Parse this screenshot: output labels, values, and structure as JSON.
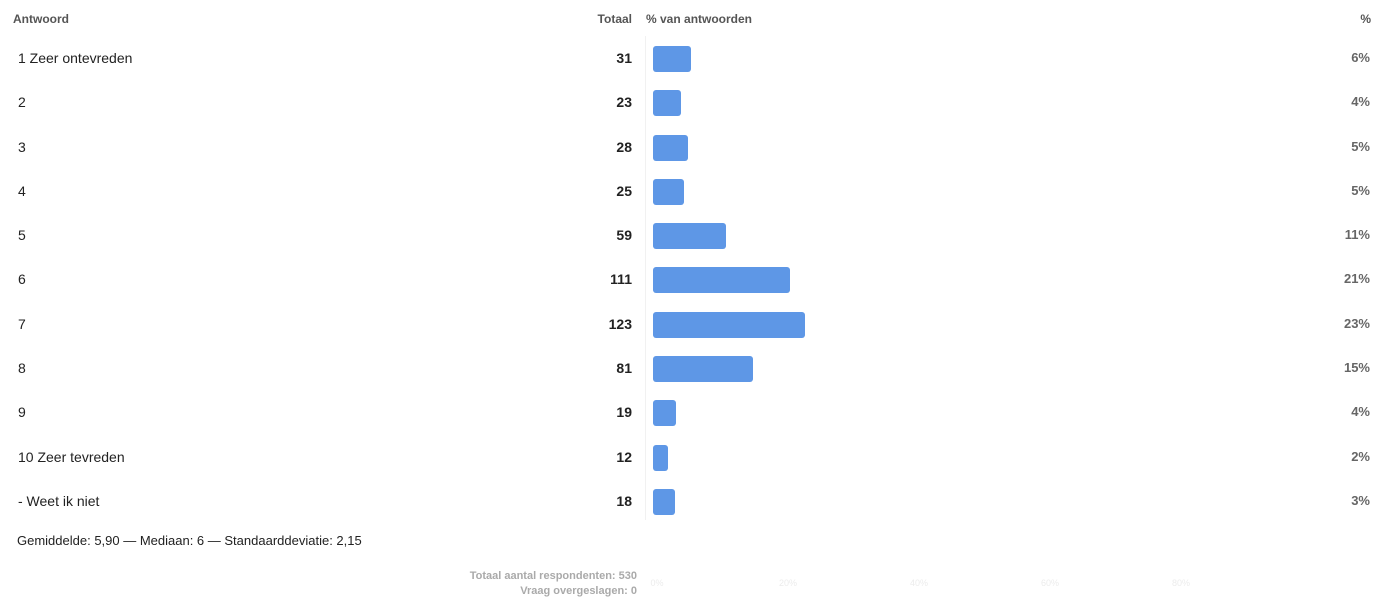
{
  "headers": {
    "answer": "Antwoord",
    "total": "Totaal",
    "pct_of_answers": "% van antwoorden",
    "pct": "%"
  },
  "chart_data": {
    "type": "bar",
    "orientation": "horizontal",
    "categories": [
      "1 Zeer ontevreden",
      "2",
      "3",
      "4",
      "5",
      "6",
      "7",
      "8",
      "9",
      "10 Zeer tevreden",
      "- Weet ik niet"
    ],
    "totals": [
      31,
      23,
      28,
      25,
      59,
      111,
      123,
      81,
      19,
      12,
      18
    ],
    "percent_labels": [
      "6%",
      "4%",
      "5%",
      "5%",
      "11%",
      "21%",
      "23%",
      "15%",
      "4%",
      "2%",
      "3%"
    ],
    "xlim": [
      0,
      100
    ],
    "grid": false,
    "bar_color": "#5e97e6"
  },
  "stats": "Gemiddelde: 5,90 — Mediaan: 6 — Standaarddeviatie: 2,15",
  "footer": {
    "respondents": "Totaal aantal respondenten: 530",
    "skipped": "Vraag overgeslagen: 0"
  }
}
